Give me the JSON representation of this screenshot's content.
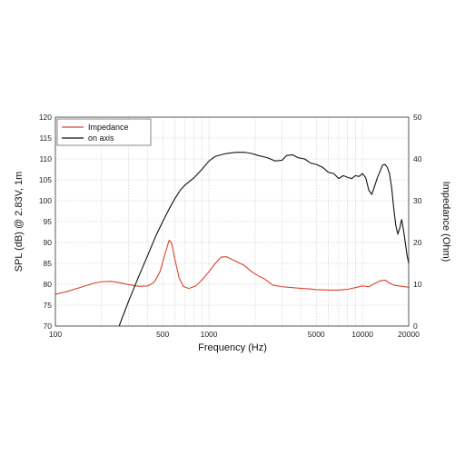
{
  "chart_data": {
    "type": "line",
    "xlabel": "Frequency (Hz)",
    "ylabel": "SPL (dB) @ 2.83V, 1m",
    "y2label": "Impedance (Ohm)",
    "xscale": "log",
    "xlim": [
      100,
      20000
    ],
    "ylim": [
      70,
      120
    ],
    "y2lim": [
      0,
      50
    ],
    "grid": true,
    "legend_position": "top-left",
    "x_ticks": [
      {
        "value": 100,
        "label": "100"
      },
      {
        "value": 500,
        "label": "500"
      },
      {
        "value": 1000,
        "label": "1000"
      },
      {
        "value": 5000,
        "label": "5000"
      },
      {
        "value": 10000,
        "label": "10000"
      },
      {
        "value": 20000,
        "label": "20000"
      }
    ],
    "y_ticks": [
      {
        "value": 70,
        "label": "70"
      },
      {
        "value": 75,
        "label": "75"
      },
      {
        "value": 80,
        "label": "80"
      },
      {
        "value": 85,
        "label": "85"
      },
      {
        "value": 90,
        "label": "90"
      },
      {
        "value": 95,
        "label": "95"
      },
      {
        "value": 100,
        "label": "100"
      },
      {
        "value": 105,
        "label": "105"
      },
      {
        "value": 110,
        "label": "110"
      },
      {
        "value": 115,
        "label": "115"
      },
      {
        "value": 120,
        "label": "120"
      }
    ],
    "y2_ticks": [
      {
        "value": 0,
        "label": "0"
      },
      {
        "value": 10,
        "label": "10"
      },
      {
        "value": 20,
        "label": "20"
      },
      {
        "value": 30,
        "label": "30"
      },
      {
        "value": 40,
        "label": "40"
      },
      {
        "value": 50,
        "label": "50"
      }
    ],
    "series": [
      {
        "name": "Impedance",
        "axis": "right",
        "color": "#d9432f",
        "points": [
          [
            100,
            7.6
          ],
          [
            120,
            8.3
          ],
          [
            150,
            9.4
          ],
          [
            180,
            10.3
          ],
          [
            200,
            10.6
          ],
          [
            230,
            10.7
          ],
          [
            260,
            10.4
          ],
          [
            300,
            9.9
          ],
          [
            350,
            9.5
          ],
          [
            400,
            9.6
          ],
          [
            440,
            10.5
          ],
          [
            480,
            13.0
          ],
          [
            520,
            17.5
          ],
          [
            550,
            20.5
          ],
          [
            570,
            20.0
          ],
          [
            600,
            16.0
          ],
          [
            640,
            11.5
          ],
          [
            680,
            9.5
          ],
          [
            740,
            9.0
          ],
          [
            820,
            9.6
          ],
          [
            900,
            11.0
          ],
          [
            1000,
            13.0
          ],
          [
            1100,
            15.0
          ],
          [
            1200,
            16.5
          ],
          [
            1300,
            16.6
          ],
          [
            1400,
            16.0
          ],
          [
            1500,
            15.5
          ],
          [
            1700,
            14.5
          ],
          [
            1900,
            13.0
          ],
          [
            2100,
            12.0
          ],
          [
            2300,
            11.3
          ],
          [
            2600,
            9.8
          ],
          [
            3000,
            9.4
          ],
          [
            3500,
            9.2
          ],
          [
            4000,
            9.0
          ],
          [
            4500,
            8.9
          ],
          [
            5000,
            8.7
          ],
          [
            6000,
            8.6
          ],
          [
            7000,
            8.6
          ],
          [
            8000,
            8.8
          ],
          [
            9000,
            9.2
          ],
          [
            10000,
            9.6
          ],
          [
            11000,
            9.4
          ],
          [
            12000,
            10.2
          ],
          [
            13000,
            10.8
          ],
          [
            14000,
            11.0
          ],
          [
            15000,
            10.3
          ],
          [
            16000,
            9.8
          ],
          [
            18000,
            9.5
          ],
          [
            20000,
            9.3
          ]
        ]
      },
      {
        "name": "on axis",
        "axis": "left",
        "color": "#111111",
        "points": [
          [
            260,
            70.0
          ],
          [
            300,
            76.0
          ],
          [
            350,
            82.0
          ],
          [
            400,
            87.0
          ],
          [
            450,
            91.5
          ],
          [
            500,
            95.0
          ],
          [
            550,
            98.0
          ],
          [
            600,
            100.5
          ],
          [
            650,
            102.5
          ],
          [
            700,
            103.8
          ],
          [
            800,
            105.5
          ],
          [
            900,
            107.5
          ],
          [
            1000,
            109.5
          ],
          [
            1100,
            110.6
          ],
          [
            1200,
            111.0
          ],
          [
            1300,
            111.3
          ],
          [
            1500,
            111.6
          ],
          [
            1700,
            111.6
          ],
          [
            1900,
            111.3
          ],
          [
            2100,
            110.8
          ],
          [
            2400,
            110.3
          ],
          [
            2700,
            109.5
          ],
          [
            3000,
            109.7
          ],
          [
            3200,
            110.8
          ],
          [
            3500,
            111.0
          ],
          [
            3800,
            110.3
          ],
          [
            4200,
            110.0
          ],
          [
            4600,
            109.0
          ],
          [
            5000,
            108.7
          ],
          [
            5500,
            108.0
          ],
          [
            6000,
            106.8
          ],
          [
            6500,
            106.5
          ],
          [
            7000,
            105.3
          ],
          [
            7500,
            106.0
          ],
          [
            8000,
            105.6
          ],
          [
            8500,
            105.3
          ],
          [
            9000,
            106.0
          ],
          [
            9500,
            105.8
          ],
          [
            10000,
            106.5
          ],
          [
            10500,
            105.5
          ],
          [
            11000,
            102.5
          ],
          [
            11500,
            101.5
          ],
          [
            12000,
            103.5
          ],
          [
            12500,
            105.5
          ],
          [
            13000,
            107.0
          ],
          [
            13500,
            108.5
          ],
          [
            14000,
            108.7
          ],
          [
            14500,
            108.0
          ],
          [
            15000,
            106.5
          ],
          [
            15500,
            103.0
          ],
          [
            16000,
            98.0
          ],
          [
            16500,
            94.0
          ],
          [
            17000,
            92.0
          ],
          [
            17500,
            93.5
          ],
          [
            18000,
            95.5
          ],
          [
            18500,
            93.0
          ],
          [
            19000,
            90.0
          ],
          [
            19500,
            87.0
          ],
          [
            20000,
            85.0
          ]
        ]
      }
    ]
  }
}
